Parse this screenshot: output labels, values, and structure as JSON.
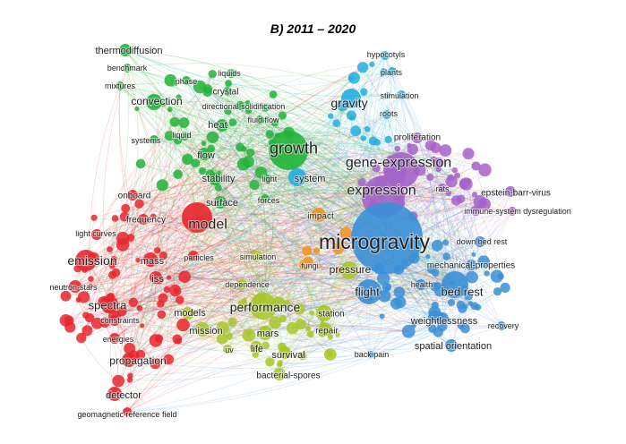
{
  "title": "B) 2011 – 2020",
  "clusters": [
    {
      "id": "red",
      "color": "#e8262d"
    },
    {
      "id": "green",
      "color": "#22b33a"
    },
    {
      "id": "blue",
      "color": "#3b8fd6"
    },
    {
      "id": "cyan",
      "color": "#22aee0"
    },
    {
      "id": "purple",
      "color": "#a463c9"
    },
    {
      "id": "yellow",
      "color": "#a8c62a"
    },
    {
      "id": "orange",
      "color": "#f29222"
    }
  ],
  "keywords": [
    {
      "label": "microgravity",
      "cluster": "blue"
    },
    {
      "label": "expression",
      "cluster": "purple"
    },
    {
      "label": "gene-expression",
      "cluster": "purple"
    },
    {
      "label": "growth",
      "cluster": "green"
    },
    {
      "label": "model",
      "cluster": "red"
    },
    {
      "label": "performance",
      "cluster": "yellow"
    },
    {
      "label": "flight",
      "cluster": "blue"
    },
    {
      "label": "bed rest",
      "cluster": "blue"
    },
    {
      "label": "emission",
      "cluster": "red"
    },
    {
      "label": "spectra",
      "cluster": "red"
    },
    {
      "label": "propagation",
      "cluster": "red"
    },
    {
      "label": "gravity",
      "cluster": "cyan"
    },
    {
      "label": "thermodiffusion",
      "cluster": "green"
    },
    {
      "label": "convection",
      "cluster": "green"
    },
    {
      "label": "system",
      "cluster": "cyan"
    },
    {
      "label": "pressure",
      "cluster": "yellow"
    },
    {
      "label": "detector",
      "cluster": "red"
    },
    {
      "label": "mass",
      "cluster": "red"
    },
    {
      "label": "iss",
      "cluster": "red"
    },
    {
      "label": "onboard",
      "cluster": "red"
    },
    {
      "label": "frequency",
      "cluster": "red"
    },
    {
      "label": "light curves",
      "cluster": "red"
    },
    {
      "label": "neutron-stars",
      "cluster": "red"
    },
    {
      "label": "constraints",
      "cluster": "red"
    },
    {
      "label": "energies",
      "cluster": "red"
    },
    {
      "label": "geomagnetic reference field",
      "cluster": "red"
    },
    {
      "label": "particles",
      "cluster": "red"
    },
    {
      "label": "models",
      "cluster": "yellow"
    },
    {
      "label": "mission",
      "cluster": "yellow"
    },
    {
      "label": "uv",
      "cluster": "yellow"
    },
    {
      "label": "life",
      "cluster": "yellow"
    },
    {
      "label": "survival",
      "cluster": "yellow"
    },
    {
      "label": "bacterial-spores",
      "cluster": "yellow"
    },
    {
      "label": "mars",
      "cluster": "yellow"
    },
    {
      "label": "station",
      "cluster": "yellow"
    },
    {
      "label": "repair",
      "cluster": "yellow"
    },
    {
      "label": "dependence",
      "cluster": "yellow"
    },
    {
      "label": "simulation",
      "cluster": "yellow"
    },
    {
      "label": "fungi",
      "cluster": "orange"
    },
    {
      "label": "impact",
      "cluster": "orange"
    },
    {
      "label": "surface",
      "cluster": "green"
    },
    {
      "label": "stability",
      "cluster": "green"
    },
    {
      "label": "flow",
      "cluster": "green"
    },
    {
      "label": "systems",
      "cluster": "green"
    },
    {
      "label": "liquid",
      "cluster": "green"
    },
    {
      "label": "heat",
      "cluster": "green"
    },
    {
      "label": "fluid flow",
      "cluster": "green"
    },
    {
      "label": "directional solidification",
      "cluster": "green"
    },
    {
      "label": "crystal",
      "cluster": "green"
    },
    {
      "label": "liquids",
      "cluster": "green"
    },
    {
      "label": "phase",
      "cluster": "green"
    },
    {
      "label": "mixtures",
      "cluster": "green"
    },
    {
      "label": "benchmark",
      "cluster": "green"
    },
    {
      "label": "light",
      "cluster": "green"
    },
    {
      "label": "forces",
      "cluster": "green"
    },
    {
      "label": "hypocotyls",
      "cluster": "cyan"
    },
    {
      "label": "plants",
      "cluster": "cyan"
    },
    {
      "label": "stimulation",
      "cluster": "cyan"
    },
    {
      "label": "roots",
      "cluster": "cyan"
    },
    {
      "label": "proliferation",
      "cluster": "purple"
    },
    {
      "label": "rats",
      "cluster": "purple"
    },
    {
      "label": "epstein-barr-virus",
      "cluster": "purple"
    },
    {
      "label": "immune-system dysregulation",
      "cluster": "purple"
    },
    {
      "label": "down bed rest",
      "cluster": "blue"
    },
    {
      "label": "mechanical-properties",
      "cluster": "blue"
    },
    {
      "label": "health",
      "cluster": "blue"
    },
    {
      "label": "weightlessness",
      "cluster": "blue"
    },
    {
      "label": "recovery",
      "cluster": "blue"
    },
    {
      "label": "spatial orientation",
      "cluster": "blue"
    },
    {
      "label": "back pain",
      "cluster": "blue"
    }
  ]
}
